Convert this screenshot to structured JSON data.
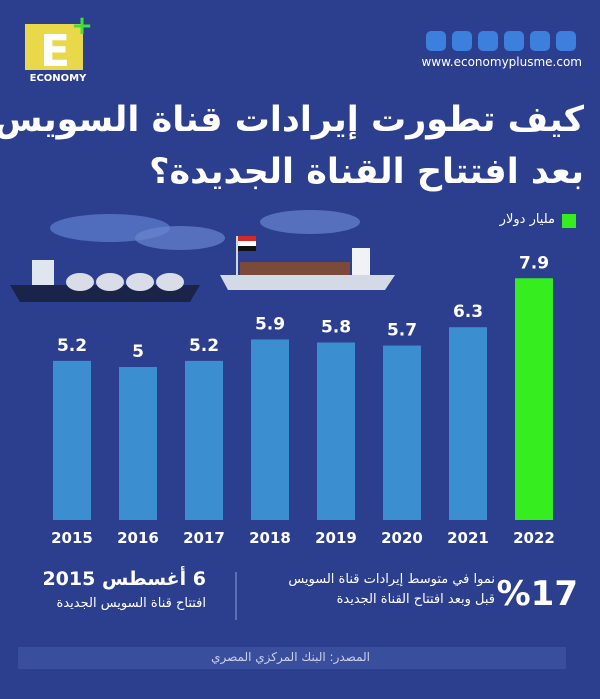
{
  "header": {
    "logo": "E",
    "logo_text": "ECONOMY",
    "website": "www.economyplusme.com"
  },
  "chart_data": {
    "type": "bar",
    "title": "كيف تطورت إيرادات قناة السويس",
    "subtitle": "بعد افتتاح القناة الجديدة؟",
    "unit": "مليار دولار",
    "categories": [
      "2015",
      "2016",
      "2017",
      "2018",
      "2019",
      "2020",
      "2021",
      "2022"
    ],
    "values": [
      5.2,
      5,
      5.2,
      5.9,
      5.8,
      5.7,
      6.3,
      7.9
    ],
    "colors": [
      "#3b8fd1",
      "#3b8fd1",
      "#3b8fd1",
      "#3b8fd1",
      "#3b8fd1",
      "#3b8fd1",
      "#3b8fd1",
      "#36ee1f"
    ]
  },
  "notes": {
    "date": "6 أغسطس 2015",
    "date_caption": "افتتاح قناة السويس الجديدة",
    "growth": "%17",
    "growth_caption_1": "نموا في متوسط إيرادات قناة السويس",
    "growth_caption_2": "قبل وبعد افتتاح القناة الجديدة"
  },
  "source": "المصدر: البنك المركزي المصري"
}
